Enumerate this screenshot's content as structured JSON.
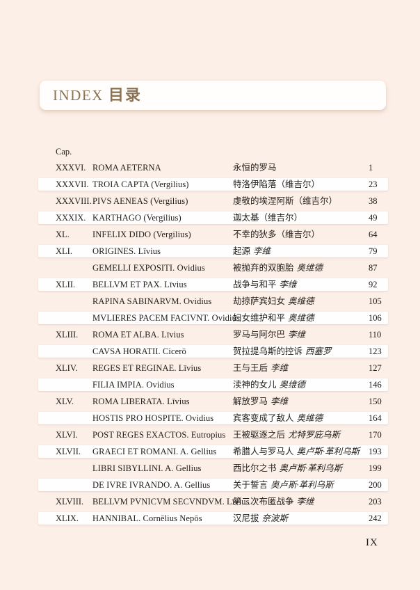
{
  "page": {
    "background_color": "#fcefe7",
    "accent_color": "#8a7252",
    "footer_page_number": "IX"
  },
  "header": {
    "title_latin": "INDEX",
    "title_zh": "目录"
  },
  "toc": {
    "column_header": "Cap.",
    "rows": [
      {
        "cap": "XXXVI.",
        "latin": "ROMA AETERNA",
        "zh": "永恒的罗马",
        "zh_author": "",
        "page": "1"
      },
      {
        "cap": "XXXVII.",
        "latin": "TROIA CAPTA (Vergilius)",
        "zh": "特洛伊陷落（维吉尔）",
        "zh_author": "",
        "page": "23"
      },
      {
        "cap": "XXXVIII.",
        "latin": "PIVS AENEAS (Vergilius)",
        "zh": "虔敬的埃涅阿斯（维吉尔）",
        "zh_author": "",
        "page": "38"
      },
      {
        "cap": "XXXIX.",
        "latin": "KARTHAGO (Vergilius)",
        "zh": "迦太基（维吉尔）",
        "zh_author": "",
        "page": "49"
      },
      {
        "cap": "XL.",
        "latin": "INFELIX DIDO (Vergilius)",
        "zh": "不幸的狄多（维吉尔）",
        "zh_author": "",
        "page": "64"
      },
      {
        "cap": "XLI.",
        "latin": "ORIGINES. Līvius",
        "zh": "起源",
        "zh_author": "李维",
        "page": "79"
      },
      {
        "cap": "",
        "latin": "GEMELLI EXPOSITI. Ovidius",
        "zh": "被抛弃的双胞胎",
        "zh_author": "奥维德",
        "page": "87"
      },
      {
        "cap": "XLII.",
        "latin": "BELLVM ET PAX. Līvius",
        "zh": "战争与和平",
        "zh_author": "李维",
        "page": "92"
      },
      {
        "cap": "",
        "latin": "RAPINA SABINARVM. Ovidius",
        "zh": "劫掠萨宾妇女",
        "zh_author": "奥维德",
        "page": "105"
      },
      {
        "cap": "",
        "latin": "MVLIERES PACEM FACIVNT. Ovidius",
        "zh": "妇女维护和平",
        "zh_author": "奥维德",
        "page": "106"
      },
      {
        "cap": "XLIII.",
        "latin": "ROMA ET ALBA. Līvius",
        "zh": "罗马与阿尔巴",
        "zh_author": "李维",
        "page": "110"
      },
      {
        "cap": "",
        "latin": "CAVSA HORATII. Cicerō",
        "zh": "贺拉提乌斯的控诉",
        "zh_author": "西塞罗",
        "page": "123"
      },
      {
        "cap": "XLIV.",
        "latin": "REGES ET REGINAE. Līvius",
        "zh": "王与王后",
        "zh_author": "李维",
        "page": "127"
      },
      {
        "cap": "",
        "latin": "FILIA IMPIA. Ovidius",
        "zh": "渎神的女儿",
        "zh_author": "奥维德",
        "page": "146"
      },
      {
        "cap": "XLV.",
        "latin": "ROMA LIBERATA. Līvius",
        "zh": "解放罗马",
        "zh_author": "李维",
        "page": "150"
      },
      {
        "cap": "",
        "latin": "HOSTIS PRO HOSPITE. Ovidius",
        "zh": "宾客变成了敌人",
        "zh_author": "奥维德",
        "page": "164"
      },
      {
        "cap": "XLVI.",
        "latin": "POST REGES EXACTOS. Eutropius",
        "zh": "王被驱逐之后",
        "zh_author": "尤特罗庇乌斯",
        "page": "170"
      },
      {
        "cap": "XLVII.",
        "latin": "GRAECI ET ROMANI. A. Gellius",
        "zh": "希腊人与罗马人",
        "zh_author": "奥卢斯·革利乌斯",
        "page": "193"
      },
      {
        "cap": "",
        "latin": "LIBRI SIBYLLINI. A. Gellius",
        "zh": "西比尔之书",
        "zh_author": "奥卢斯·革利乌斯",
        "page": "199"
      },
      {
        "cap": "",
        "latin": "DE IVRE IVRANDO. A. Gellius",
        "zh": "关于誓言",
        "zh_author": "奥卢斯·革利乌斯",
        "page": "200"
      },
      {
        "cap": "XLVIII.",
        "latin": "BELLVM PVNICVM SECVNDVM. Līvius",
        "zh": "第二次布匿战争",
        "zh_author": "李维",
        "page": "203"
      },
      {
        "cap": "XLIX.",
        "latin": "HANNIBAL. Cornēlius Nepōs",
        "zh": "汉尼拔",
        "zh_author": "奈波斯",
        "page": "242"
      }
    ]
  }
}
